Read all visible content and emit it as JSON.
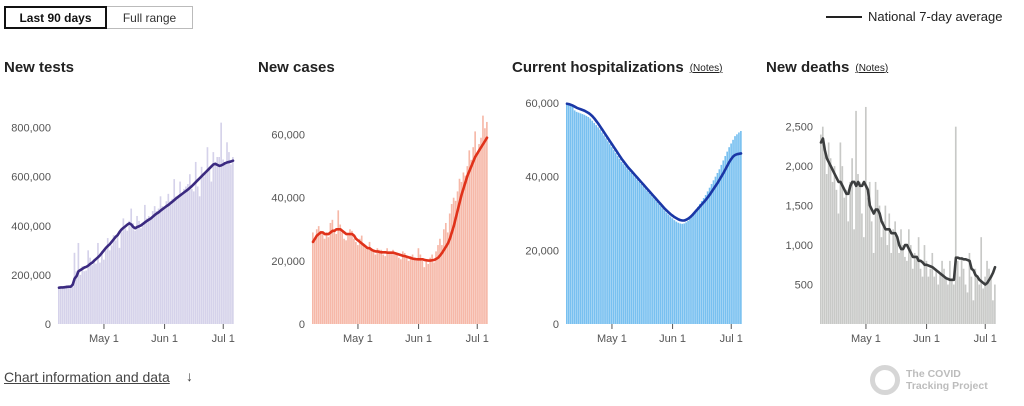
{
  "toggle": {
    "active_label": "Last 90 days",
    "inactive_label": "Full range"
  },
  "legend": {
    "label": "National 7-day average"
  },
  "footer": {
    "link_label": "Chart information and data",
    "arrow": "↓"
  },
  "logo": {
    "text": "The COVID\nTracking Project"
  },
  "chart_data": [
    {
      "type": "bar",
      "title": "New tests",
      "notes": "",
      "bar_color": "#d5d2ea",
      "line_color": "#3b2a80",
      "ylim": [
        0,
        900000
      ],
      "yticks": [
        0,
        200000,
        400000,
        600000,
        800000
      ],
      "ytick_labels": [
        "0",
        "200,000",
        "400,000",
        "600,000",
        "800,000"
      ],
      "xticks": [
        {
          "index": 23,
          "label": "May 1"
        },
        {
          "index": 54,
          "label": "Jun 1"
        },
        {
          "index": 84,
          "label": "Jul 1"
        }
      ],
      "values": [
        148000,
        152000,
        146000,
        150000,
        158000,
        155000,
        150000,
        152000,
        290000,
        215000,
        330000,
        200000,
        235000,
        215000,
        218000,
        300000,
        270000,
        240000,
        260000,
        246000,
        330000,
        250000,
        298000,
        262000,
        300000,
        350000,
        300000,
        320000,
        362000,
        340000,
        360000,
        310000,
        374000,
        430000,
        390000,
        380000,
        420000,
        470000,
        410000,
        380000,
        440000,
        420000,
        390000,
        400000,
        485000,
        430000,
        440000,
        430000,
        460000,
        480000,
        460000,
        470000,
        520000,
        480000,
        470000,
        500000,
        530000,
        500000,
        510000,
        590000,
        520000,
        520000,
        580000,
        530000,
        550000,
        560000,
        570000,
        610000,
        550000,
        540000,
        660000,
        560000,
        520000,
        640000,
        600000,
        620000,
        720000,
        640000,
        580000,
        700000,
        660000,
        680000,
        680000,
        820000,
        670000,
        660000,
        740000,
        700000,
        650000,
        680000
      ],
      "avg": [
        148000,
        149000,
        149000,
        150000,
        151000,
        152000,
        152000,
        160000,
        185000,
        195000,
        215000,
        220000,
        225000,
        230000,
        233000,
        238000,
        245000,
        250000,
        258000,
        265000,
        272000,
        280000,
        290000,
        300000,
        310000,
        318000,
        325000,
        335000,
        345000,
        355000,
        362000,
        375000,
        385000,
        392000,
        398000,
        405000,
        410000,
        405000,
        395000,
        390000,
        395000,
        398000,
        402000,
        408000,
        414000,
        420000,
        425000,
        430000,
        437000,
        444000,
        450000,
        455000,
        462000,
        468000,
        474000,
        480000,
        485000,
        492000,
        498000,
        505000,
        512000,
        518000,
        524000,
        530000,
        536000,
        542000,
        548000,
        555000,
        562000,
        570000,
        578000,
        586000,
        594000,
        602000,
        610000,
        618000,
        626000,
        634000,
        642000,
        650000,
        652000,
        648000,
        644000,
        646000,
        650000,
        655000,
        658000,
        660000,
        662000,
        665000
      ]
    },
    {
      "type": "bar",
      "title": "New cases",
      "notes": "",
      "bar_color": "#f6b8a8",
      "line_color": "#e0321a",
      "ylim": [
        0,
        70000
      ],
      "yticks": [
        0,
        20000,
        40000,
        60000
      ],
      "ytick_labels": [
        "0",
        "20,000",
        "40,000",
        "60,000"
      ],
      "xticks": [
        {
          "index": 23,
          "label": "May 1"
        },
        {
          "index": 54,
          "label": "Jun 1"
        },
        {
          "index": 84,
          "label": "Jul 1"
        }
      ],
      "values": [
        29000,
        27000,
        30000,
        31000,
        29500,
        28500,
        27000,
        29000,
        27500,
        32000,
        33000,
        30000,
        28500,
        36000,
        31500,
        29000,
        27000,
        26500,
        28000,
        30000,
        29500,
        27000,
        26000,
        25000,
        27000,
        28000,
        25000,
        24000,
        23500,
        26000,
        24000,
        23000,
        22000,
        24000,
        23500,
        23500,
        22000,
        21500,
        24000,
        23000,
        23000,
        23500,
        22000,
        22500,
        21000,
        20500,
        23000,
        22500,
        21000,
        20000,
        21500,
        22000,
        20500,
        20000,
        24000,
        22000,
        20000,
        18000,
        20000,
        19000,
        21000,
        22000,
        19500,
        23000,
        25000,
        27000,
        25000,
        30000,
        32000,
        29000,
        35000,
        38000,
        40000,
        39000,
        42000,
        46000,
        45000,
        48000,
        47000,
        50000,
        55000,
        52000,
        56000,
        61000,
        54000,
        57000,
        59000,
        66000,
        62000,
        64000
      ],
      "avg": [
        26000,
        27000,
        28000,
        28500,
        29000,
        29000,
        28500,
        28500,
        28500,
        29000,
        29500,
        29500,
        30000,
        30000,
        30000,
        29500,
        29000,
        28500,
        28500,
        28500,
        28500,
        28000,
        27000,
        26500,
        26000,
        25500,
        25000,
        24500,
        24000,
        24000,
        23500,
        23200,
        23000,
        23000,
        22800,
        22700,
        22700,
        22700,
        22600,
        22600,
        22600,
        22600,
        22400,
        22200,
        22000,
        21800,
        21600,
        21500,
        21300,
        21100,
        20900,
        20700,
        20600,
        20500,
        20500,
        20500,
        20500,
        20300,
        20200,
        20100,
        20100,
        20200,
        20300,
        20600,
        21000,
        21700,
        22500,
        23500,
        24500,
        25500,
        27000,
        29000,
        31000,
        33500,
        36000,
        38500,
        41000,
        43000,
        45000,
        47000,
        48500,
        50000,
        51500,
        53000,
        54000,
        55000,
        56000,
        57000,
        58000,
        59000
      ]
    },
    {
      "type": "bar",
      "title": "Current hospitalizations",
      "notes": "Notes",
      "bar_color": "#78c0f0",
      "line_color": "#1a37a6",
      "ylim": [
        0,
        60000
      ],
      "yticks": [
        0,
        20000,
        40000,
        60000
      ],
      "ytick_labels": [
        "0",
        "20,000",
        "40,000",
        "60,000"
      ],
      "xticks": [
        {
          "index": 23,
          "label": "May 1"
        },
        {
          "index": 54,
          "label": "Jun 1"
        },
        {
          "index": 84,
          "label": "Jul 1"
        }
      ],
      "values": [
        59800,
        59600,
        59500,
        59400,
        58000,
        57600,
        57400,
        57200,
        57000,
        56800,
        56500,
        56200,
        55800,
        55200,
        54600,
        54000,
        53400,
        52800,
        52000,
        51200,
        50400,
        49600,
        48800,
        48000,
        47200,
        46400,
        45600,
        44800,
        44000,
        43400,
        42800,
        42200,
        41600,
        41000,
        40400,
        39800,
        39200,
        38600,
        38000,
        37400,
        36800,
        36200,
        35600,
        35000,
        34400,
        33800,
        33200,
        32600,
        32000,
        31400,
        30800,
        30200,
        29700,
        29200,
        28700,
        28200,
        27800,
        27500,
        27300,
        27200,
        27300,
        27600,
        28000,
        28600,
        29300,
        30200,
        31000,
        31800,
        32600,
        33400,
        34200,
        35000,
        36000,
        37000,
        38000,
        39000,
        40000,
        41000,
        42000,
        43200,
        44400,
        45600,
        46800,
        48000,
        49000,
        50000,
        51000,
        51500,
        52000,
        52400
      ],
      "avg": [
        59800,
        59700,
        59500,
        59300,
        59000,
        58700,
        58500,
        58300,
        58100,
        57900,
        57600,
        57300,
        56900,
        56400,
        55800,
        55100,
        54400,
        53600,
        52800,
        52000,
        51200,
        50400,
        49600,
        48800,
        48000,
        47200,
        46400,
        45600,
        44800,
        44100,
        43400,
        42700,
        42100,
        41500,
        40900,
        40300,
        39700,
        39100,
        38500,
        37900,
        37300,
        36700,
        36100,
        35500,
        34900,
        34300,
        33700,
        33100,
        32500,
        31900,
        31300,
        30800,
        30300,
        29800,
        29400,
        29000,
        28700,
        28400,
        28200,
        28100,
        28100,
        28300,
        28600,
        29000,
        29500,
        30100,
        30700,
        31300,
        31900,
        32500,
        33100,
        33700,
        34400,
        35100,
        35900,
        36700,
        37500,
        38300,
        39200,
        40100,
        41000,
        42000,
        43000,
        44000,
        44800,
        45500,
        45900,
        46100,
        46200,
        46300
      ]
    },
    {
      "type": "bar",
      "title": "New deaths",
      "notes": "Notes",
      "bar_color": "#c8c9c7",
      "line_color": "#3c3e3f",
      "ylim": [
        0,
        2800
      ],
      "yticks": [
        500,
        1000,
        1500,
        2000,
        2500
      ],
      "ytick_labels": [
        "500",
        "1,000",
        "1,500",
        "2,000",
        "2,500"
      ],
      "xticks": [
        {
          "index": 23,
          "label": "May 1"
        },
        {
          "index": 54,
          "label": "Jun 1"
        },
        {
          "index": 84,
          "label": "Jul 1"
        }
      ],
      "values": [
        2400,
        2500,
        2200,
        1900,
        2300,
        2100,
        1800,
        2000,
        1700,
        1400,
        2300,
        2000,
        1600,
        1700,
        1300,
        1800,
        2100,
        1200,
        2700,
        1900,
        1800,
        1400,
        1100,
        2750,
        1600,
        1800,
        1300,
        900,
        1800,
        1700,
        1500,
        1100,
        1300,
        1500,
        1000,
        1400,
        900,
        1200,
        1300,
        1100,
        900,
        1200,
        1000,
        850,
        800,
        1200,
        1000,
        700,
        900,
        850,
        1100,
        700,
        600,
        1000,
        800,
        600,
        700,
        900,
        600,
        700,
        500,
        650,
        800,
        700,
        600,
        500,
        800,
        550,
        500,
        2500,
        800,
        600,
        850,
        700,
        500,
        400,
        900,
        600,
        300,
        700,
        600,
        500,
        1100,
        450,
        600,
        800,
        700,
        600,
        300,
        500
      ],
      "avg": [
        2300,
        2350,
        2200,
        2100,
        2050,
        2000,
        1950,
        1900,
        1850,
        1800,
        1800,
        1750,
        1700,
        1650,
        1650,
        1750,
        1800,
        1800,
        1750,
        1800,
        1750,
        1750,
        1800,
        1750,
        1700,
        1500,
        1450,
        1400,
        1450,
        1450,
        1400,
        1300,
        1250,
        1200,
        1200,
        1200,
        1150,
        1150,
        1150,
        1100,
        1000,
        950,
        950,
        1000,
        1000,
        950,
        900,
        850,
        850,
        850,
        800,
        800,
        780,
        750,
        750,
        740,
        730,
        720,
        700,
        680,
        660,
        640,
        620,
        600,
        580,
        570,
        560,
        560,
        560,
        840,
        840,
        830,
        830,
        820,
        820,
        810,
        800,
        700,
        680,
        620,
        600,
        560,
        540,
        520,
        500,
        520,
        560,
        600,
        650,
        720
      ]
    }
  ]
}
